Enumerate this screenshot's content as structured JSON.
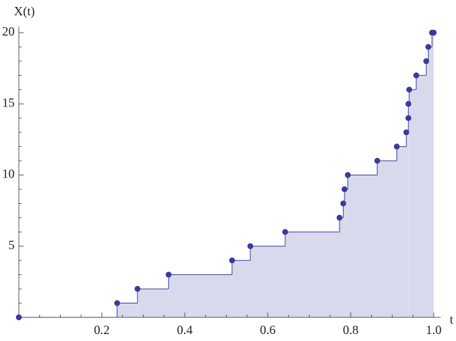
{
  "chart_data": {
    "type": "step-scatter",
    "x_label": "t",
    "y_label": "X(t)",
    "x": [
      0,
      0.237,
      0.286,
      0.361,
      0.514,
      0.558,
      0.642,
      0.773,
      0.782,
      0.785,
      0.793,
      0.864,
      0.911,
      0.934,
      0.939,
      0.939,
      0.941,
      0.958,
      0.982,
      0.987,
      0.996,
      1.0
    ],
    "values": [
      0,
      1,
      2,
      3,
      4,
      5,
      6,
      7,
      8,
      9,
      10,
      11,
      12,
      13,
      14,
      15,
      16,
      17,
      18,
      19,
      20,
      20
    ],
    "color": "#3b3b98",
    "fill_color": "#d9d9ed",
    "xlim": [
      0,
      1
    ],
    "ylim": [
      0,
      20
    ],
    "xticks": [
      0.2,
      0.4,
      0.6,
      0.8,
      {
        "value": 1,
        "label": "1.0"
      }
    ],
    "yticks": [
      5,
      10,
      15,
      20
    ],
    "xminorticks": [
      0.05,
      0.1,
      0.15,
      0.25,
      0.3,
      0.35,
      0.45,
      0.5,
      0.55,
      0.65,
      0.7,
      0.75,
      0.85,
      0.9,
      0.95
    ],
    "yminorticks": [
      1,
      2,
      3,
      4,
      6,
      7,
      8,
      9,
      11,
      12,
      13,
      14,
      16,
      17,
      18,
      19
    ]
  }
}
